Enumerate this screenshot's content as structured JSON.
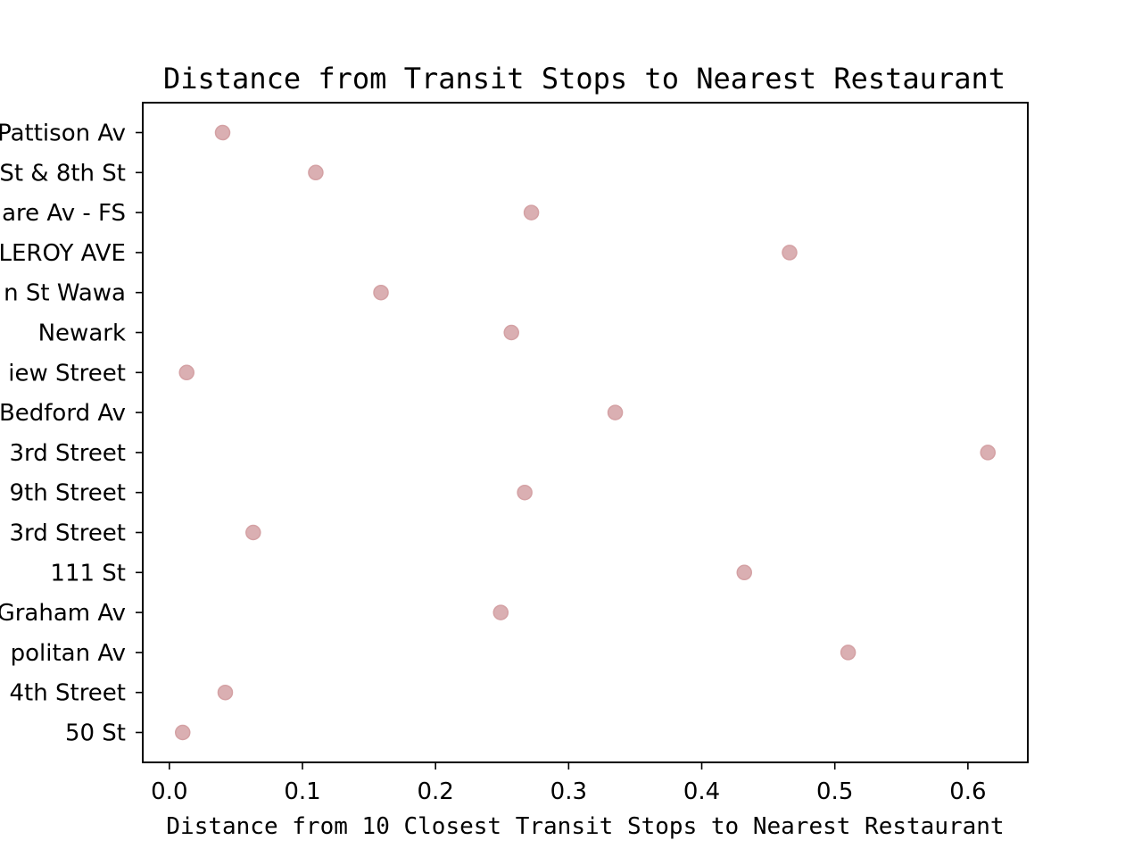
{
  "chart_data": {
    "type": "scatter",
    "title": "Distance from Transit Stops to Nearest Restaurant",
    "xlabel": "Distance from 10 Closest Transit Stops to Nearest Restaurant",
    "ylabel": "",
    "xlim": [
      -0.02,
      0.645
    ],
    "xticks": [
      "0.0",
      "0.1",
      "0.2",
      "0.3",
      "0.4",
      "0.5",
      "0.6"
    ],
    "xtick_values": [
      0.0,
      0.1,
      0.2,
      0.3,
      0.4,
      0.5,
      0.6
    ],
    "grid": false,
    "marker_color": "#d4a1a4",
    "points": [
      {
        "label": "Pattison Av",
        "x": 0.04
      },
      {
        "label": "St & 8th St",
        "x": 0.11
      },
      {
        "label": "are Av - FS",
        "x": 0.272
      },
      {
        "label": "LEROY AVE",
        "x": 0.466
      },
      {
        "label": "n St Wawa",
        "x": 0.159
      },
      {
        "label": "Newark",
        "x": 0.257
      },
      {
        "label": "iew Street",
        "x": 0.013
      },
      {
        "label": "Bedford Av",
        "x": 0.335
      },
      {
        "label": "3rd Street",
        "x": 0.615
      },
      {
        "label": "9th Street",
        "x": 0.267
      },
      {
        "label": "3rd Street",
        "x": 0.063
      },
      {
        "label": "111 St",
        "x": 0.432
      },
      {
        "label": "Graham Av",
        "x": 0.249
      },
      {
        "label": "politan Av",
        "x": 0.51
      },
      {
        "label": "4th Street",
        "x": 0.042
      },
      {
        "label": "50 St",
        "x": 0.01
      }
    ]
  }
}
